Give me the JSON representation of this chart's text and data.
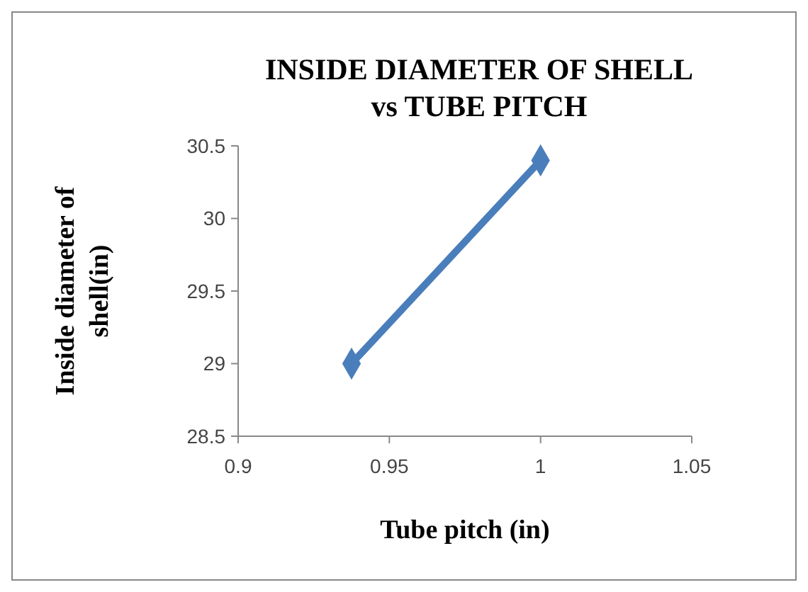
{
  "chart_data": {
    "type": "line",
    "title": "INSIDE DIAMETER OF SHELL vs TUBE PITCH",
    "xlabel": "Tube pitch (in)",
    "ylabel": "Inside diameter of shell(in)",
    "x": [
      0.9375,
      1
    ],
    "series": [
      {
        "color": "#4a7ebb",
        "values": [
          29,
          30.4
        ]
      }
    ],
    "xlim": [
      0.9,
      1.05
    ],
    "xticks": [
      0.9,
      0.95,
      1,
      1.05
    ],
    "ylim": [
      28.5,
      30.5
    ],
    "yticks": [
      28.5,
      29,
      29.5,
      30,
      30.5
    ],
    "marker": "diamond",
    "line_style": "solid",
    "grid": false
  }
}
